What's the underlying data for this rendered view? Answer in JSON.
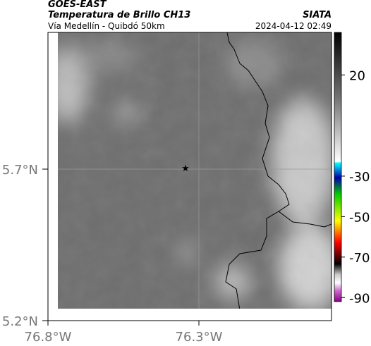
{
  "header": {
    "satellite": "GOES-EAST",
    "product": "Temperatura de Brillo CH13",
    "region": "Vía Medellín - Quibdó 50km",
    "source": "SIATA",
    "datetime": "2024-04-12 02:49"
  },
  "map": {
    "lat_labels": [
      "5.7°N",
      "5.2°N"
    ],
    "lon_labels": [
      "76.8°W",
      "76.3°W"
    ]
  },
  "colorbar": {
    "lim": [
      41,
      -92
    ],
    "ticks": [
      20,
      -30,
      -50,
      -70,
      -90
    ]
  }
}
